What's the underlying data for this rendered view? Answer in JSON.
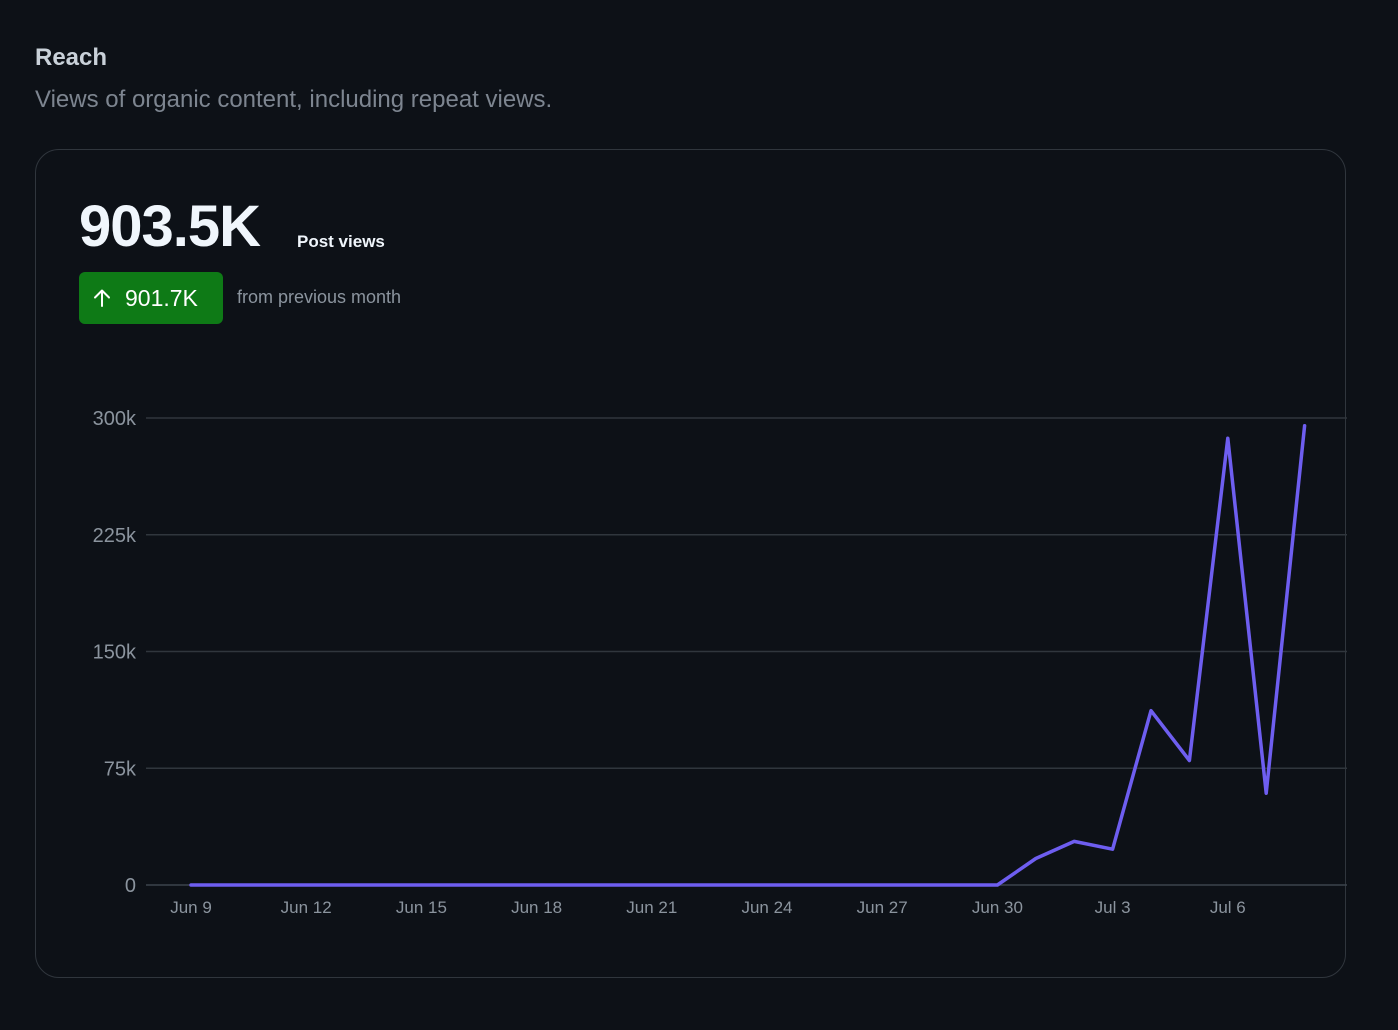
{
  "section": {
    "title": "Reach",
    "subtitle": "Views of organic content, including repeat views."
  },
  "summary": {
    "value": "903.5K",
    "label": "Post views",
    "delta": "901.7K",
    "delta_caption": "from previous month"
  },
  "colors": {
    "line": "#6e5ef0",
    "badge": "#0e7a16",
    "grid": "#30363d",
    "tick_text": "#8b949e"
  },
  "chart_data": {
    "type": "line",
    "title": "",
    "xlabel": "",
    "ylabel": "",
    "ylim": [
      0,
      300000
    ],
    "yticks": [
      0,
      75000,
      150000,
      225000,
      300000
    ],
    "ytick_labels": [
      "0",
      "75k",
      "150k",
      "225k",
      "300k"
    ],
    "x_tick_labels": [
      "Jun 9",
      "Jun 12",
      "Jun 15",
      "Jun 18",
      "Jun 21",
      "Jun 24",
      "Jun 27",
      "Jun 30",
      "Jul 3",
      "Jul 6"
    ],
    "x_tick_every": 3,
    "categories": [
      "Jun 9",
      "Jun 10",
      "Jun 11",
      "Jun 12",
      "Jun 13",
      "Jun 14",
      "Jun 15",
      "Jun 16",
      "Jun 17",
      "Jun 18",
      "Jun 19",
      "Jun 20",
      "Jun 21",
      "Jun 22",
      "Jun 23",
      "Jun 24",
      "Jun 25",
      "Jun 26",
      "Jun 27",
      "Jun 28",
      "Jun 29",
      "Jun 30",
      "Jul 1",
      "Jul 2",
      "Jul 3",
      "Jul 4",
      "Jul 5",
      "Jul 6",
      "Jul 7",
      "Jul 8"
    ],
    "series": [
      {
        "name": "Post views",
        "values": [
          0,
          0,
          0,
          0,
          0,
          0,
          0,
          0,
          0,
          0,
          0,
          0,
          0,
          0,
          0,
          0,
          0,
          0,
          0,
          0,
          0,
          0,
          17000,
          28000,
          23000,
          112000,
          80000,
          287000,
          59000,
          295000
        ]
      }
    ]
  }
}
